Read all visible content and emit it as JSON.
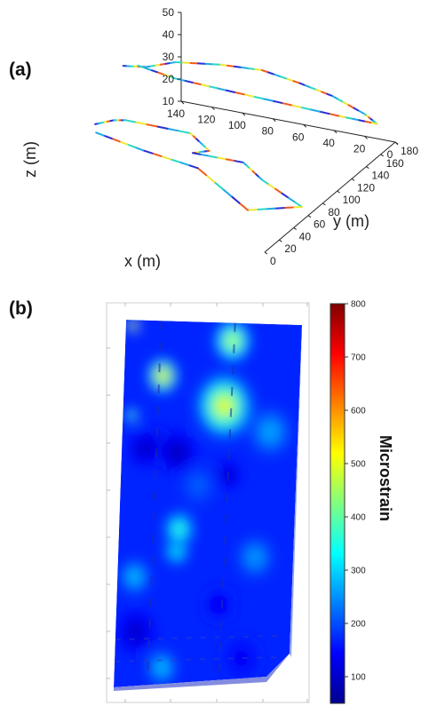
{
  "panels": [
    {
      "label": "(a)"
    },
    {
      "label": "(b)"
    }
  ],
  "chart_data": [
    {
      "type": "line",
      "panel": "(a)",
      "projection": "3d",
      "xlabel": "x (m)",
      "ylabel": "y (m)",
      "zlabel": "z (m)",
      "xlim": [
        0,
        140
      ],
      "ylim": [
        0,
        180
      ],
      "zlim": [
        10,
        50
      ],
      "x_ticks": [
        "0",
        "20",
        "40",
        "60",
        "80",
        "100",
        "120",
        "140"
      ],
      "y_ticks": [
        "0",
        "20",
        "40",
        "60",
        "80",
        "100",
        "120",
        "140",
        "160",
        "180"
      ],
      "z_ticks": [
        "10",
        "20",
        "30",
        "40",
        "50"
      ],
      "grid": false,
      "series": [
        {
          "colors": [
            "#2b2fd6",
            "#1fa8e8",
            "#2bd8c2",
            "#f0e636",
            "#f05a1e"
          ],
          "points": [
            [
              118,
              15,
              48
            ],
            [
              112,
              28,
              47
            ],
            [
              110,
              40,
              44
            ],
            [
              70,
              45,
              42
            ],
            [
              60,
              50,
              34
            ],
            [
              66,
              40,
              35
            ],
            [
              40,
              55,
              30
            ],
            [
              30,
              60,
              22
            ],
            [
              6,
              64,
              12
            ],
            [
              30,
              40,
              14
            ],
            [
              58,
              30,
              32
            ],
            [
              90,
              22,
              38
            ],
            [
              115,
              10,
              46
            ]
          ]
        },
        {
          "colors": [
            "#2b2fd6",
            "#1fa8e8",
            "#2bd8c2",
            "#f0e636",
            "#f05a1e"
          ],
          "points": [
            [
              140,
              100,
              48
            ],
            [
              130,
              110,
              46
            ],
            [
              120,
              130,
              44
            ],
            [
              100,
              150,
              40
            ],
            [
              80,
              165,
              36
            ],
            [
              60,
              175,
              30
            ],
            [
              40,
              178,
              26
            ],
            [
              20,
              180,
              20
            ],
            [
              10,
              176,
              18
            ],
            [
              30,
              165,
              22
            ],
            [
              60,
              150,
              28
            ],
            [
              90,
              135,
              34
            ],
            [
              115,
              120,
              40
            ],
            [
              135,
              110,
              46
            ]
          ]
        }
      ]
    },
    {
      "type": "heatmap",
      "panel": "(b)",
      "colorbar_label": "Microstrain",
      "colorbar_ticks": [
        100,
        200,
        300,
        400,
        500,
        600,
        700,
        800
      ],
      "vmin": 50,
      "vmax": 800,
      "colormap": [
        "#00008f",
        "#0000ff",
        "#0080ff",
        "#00ffff",
        "#80ff80",
        "#ffff00",
        "#ff8000",
        "#ff0000",
        "#800000"
      ],
      "base_value": 170,
      "features": [
        {
          "u": 0.04,
          "v": 0.015,
          "value": 780,
          "spread": 0.02
        },
        {
          "u": 0.22,
          "v": 0.15,
          "value": 650,
          "spread": 0.05
        },
        {
          "u": 0.61,
          "v": 0.05,
          "value": 560,
          "spread": 0.06
        },
        {
          "u": 0.58,
          "v": 0.23,
          "value": 600,
          "spread": 0.09
        },
        {
          "u": 0.05,
          "v": 0.26,
          "value": 520,
          "spread": 0.02
        },
        {
          "u": 0.13,
          "v": 0.35,
          "value": 60,
          "spread": 0.05
        },
        {
          "u": 0.32,
          "v": 0.36,
          "value": 55,
          "spread": 0.06
        },
        {
          "u": 0.2,
          "v": 0.34,
          "value": 65,
          "spread": 0.05
        },
        {
          "u": 0.62,
          "v": 0.42,
          "value": 70,
          "spread": 0.04
        },
        {
          "u": 0.35,
          "v": 0.57,
          "value": 430,
          "spread": 0.05
        },
        {
          "u": 0.34,
          "v": 0.63,
          "value": 400,
          "spread": 0.04
        },
        {
          "u": 0.1,
          "v": 0.7,
          "value": 330,
          "spread": 0.05
        },
        {
          "u": 0.6,
          "v": 0.78,
          "value": 110,
          "spread": 0.05
        },
        {
          "u": 0.12,
          "v": 0.85,
          "value": 70,
          "spread": 0.06
        },
        {
          "u": 0.28,
          "v": 0.95,
          "value": 330,
          "spread": 0.05
        },
        {
          "u": 0.75,
          "v": 0.93,
          "value": 120,
          "spread": 0.06
        },
        {
          "u": 0.45,
          "v": 0.45,
          "value": 230,
          "spread": 0.06
        },
        {
          "u": 0.85,
          "v": 0.3,
          "value": 300,
          "spread": 0.07
        },
        {
          "u": 0.8,
          "v": 0.65,
          "value": 290,
          "spread": 0.06
        }
      ]
    }
  ]
}
